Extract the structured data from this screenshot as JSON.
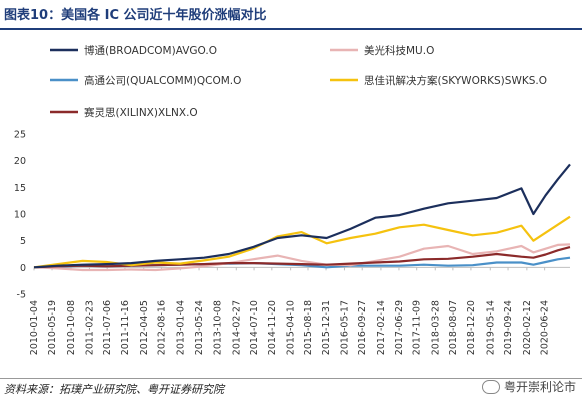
{
  "header": {
    "title": "图表10：美国各 IC 公司近十年股价涨幅对比"
  },
  "footer": {
    "source": "资料来源：拓璞产业研究院、粤开证券研究院",
    "watermark": "粤开崇利论市"
  },
  "chart_data": {
    "type": "line",
    "title": "图表10：美国各 IC 公司近十年股价涨幅对比",
    "xlabel": "",
    "ylabel": "",
    "ylim": [
      -5,
      25
    ],
    "yticks": [
      -5,
      0,
      5,
      10,
      15,
      20,
      25
    ],
    "grid": false,
    "legend_position": "top",
    "x_tick_labels": [
      "2010-01-04",
      "2010-05-19",
      "2010-10-08",
      "2011-02-23",
      "2011-07-06",
      "2011-11-16",
      "2012-04-05",
      "2012-08-16",
      "2013-01-04",
      "2013-05-24",
      "2013-10-08",
      "2014-02-27",
      "2014-07-10",
      "2014-11-20",
      "2015-04-10",
      "2015-08-18",
      "2015-12-31",
      "2016-05-17",
      "2016-09-27",
      "2017-02-14",
      "2017-06-29",
      "2017-11-09",
      "2018-03-28",
      "2018-08-07",
      "2018-12-20",
      "2019-05-14",
      "2019-09-24",
      "2020-02-12",
      "2020-06-24"
    ],
    "x": [
      "2010-01-04",
      "2010-07-01",
      "2011-01-03",
      "2011-07-01",
      "2012-01-03",
      "2012-07-02",
      "2013-01-02",
      "2013-07-01",
      "2014-01-02",
      "2014-07-01",
      "2015-01-02",
      "2015-07-01",
      "2016-01-04",
      "2016-07-01",
      "2017-01-03",
      "2017-07-03",
      "2018-01-02",
      "2018-07-02",
      "2019-01-02",
      "2019-07-01",
      "2020-01-02",
      "2020-04-01",
      "2020-07-01",
      "2020-10-01",
      "2020-12-31"
    ],
    "series": [
      {
        "name": "博通(BROADCOM)AVGO.O",
        "color": "#1c2f5c",
        "values": [
          0,
          0.3,
          0.5,
          0.6,
          0.8,
          1.2,
          1.5,
          1.8,
          2.5,
          3.8,
          5.5,
          6.0,
          5.5,
          7.2,
          9.3,
          9.8,
          11.0,
          12.0,
          12.5,
          13.0,
          14.8,
          10.0,
          13.5,
          16.5,
          19.3
        ]
      },
      {
        "name": "美光科技MU.O",
        "color": "#e8b4b4",
        "values": [
          0,
          -0.2,
          -0.5,
          -0.5,
          -0.4,
          -0.5,
          -0.2,
          0.2,
          0.8,
          1.5,
          2.2,
          1.2,
          0.5,
          0.4,
          1.2,
          2.0,
          3.5,
          4.0,
          2.5,
          3.0,
          4.0,
          2.8,
          3.5,
          4.2,
          4.3
        ]
      },
      {
        "name": "高通公司(QUALCOMM)QCOM.O",
        "color": "#4a90c8",
        "values": [
          0,
          0.1,
          0.3,
          0.2,
          0.3,
          0.4,
          0.5,
          0.6,
          0.7,
          0.8,
          0.6,
          0.4,
          0.0,
          0.3,
          0.3,
          0.3,
          0.5,
          0.3,
          0.4,
          0.9,
          0.9,
          0.5,
          1.0,
          1.5,
          1.8
        ]
      },
      {
        "name": "思佳讯解决方案(SKYWORKS)SWKS.O",
        "color": "#f5c20f",
        "values": [
          0,
          0.6,
          1.2,
          1.0,
          0.4,
          0.9,
          0.7,
          1.3,
          2.0,
          3.5,
          5.8,
          6.6,
          4.5,
          5.5,
          6.3,
          7.5,
          8.0,
          7.0,
          6.0,
          6.5,
          7.8,
          5.0,
          6.5,
          8.0,
          9.5
        ]
      },
      {
        "name": "赛灵思(XILINX)XLNX.O",
        "color": "#8b2a2a",
        "values": [
          0,
          0.2,
          0.3,
          0.2,
          0.3,
          0.4,
          0.5,
          0.6,
          0.8,
          0.8,
          0.7,
          0.6,
          0.5,
          0.7,
          0.9,
          1.1,
          1.5,
          1.6,
          2.0,
          2.5,
          2.0,
          1.8,
          2.4,
          3.2,
          3.8
        ]
      }
    ]
  }
}
